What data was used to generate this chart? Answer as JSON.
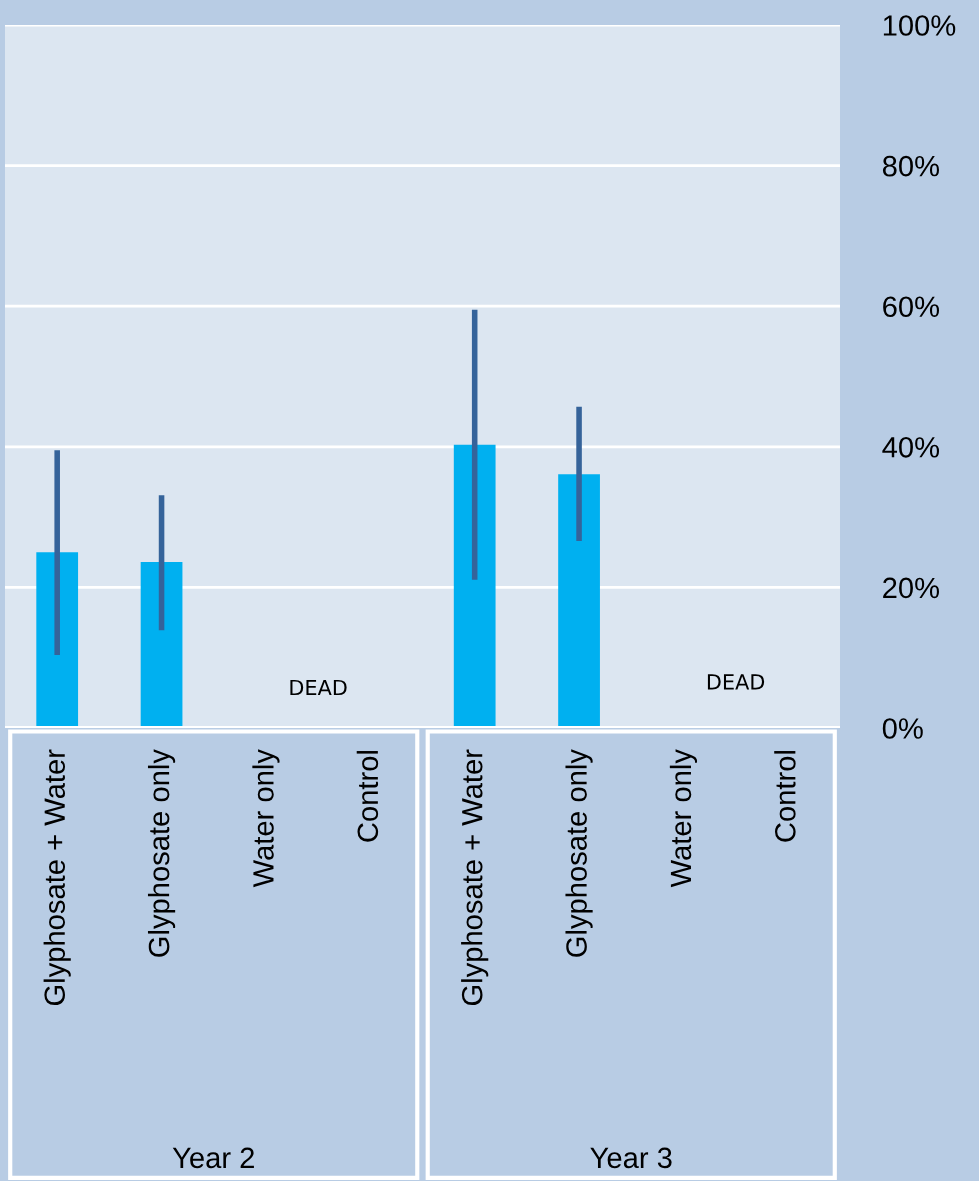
{
  "chart_data": {
    "type": "bar",
    "categories": [
      "Glyphosate + Water",
      "Glyphosate only",
      "Water only",
      "Control",
      "Glyphosate + Water",
      "Glyphosate only",
      "Water only",
      "Control"
    ],
    "values": [
      25.0,
      23.6,
      0,
      0,
      40.3,
      36.1,
      0,
      0
    ],
    "errors": [
      [
        10.4,
        39.5
      ],
      [
        13.9,
        33.1
      ],
      null,
      null,
      [
        21.1,
        59.5
      ],
      [
        26.6,
        45.7
      ],
      null,
      null
    ],
    "color": "#00b0f0",
    "ylim": [
      0,
      100
    ],
    "yticks": [
      {
        "value": 0,
        "label": "0%"
      },
      {
        "value": 20,
        "label": "20%"
      },
      {
        "value": 40,
        "label": "40%"
      },
      {
        "value": 60,
        "label": "60%"
      },
      {
        "value": 80,
        "label": "80%"
      },
      {
        "value": 100,
        "label": "100%"
      }
    ],
    "grid": "y",
    "annotations": [
      "DEAD",
      "DEAD",
      "Year 2",
      "Year 3"
    ],
    "legend": false
  }
}
